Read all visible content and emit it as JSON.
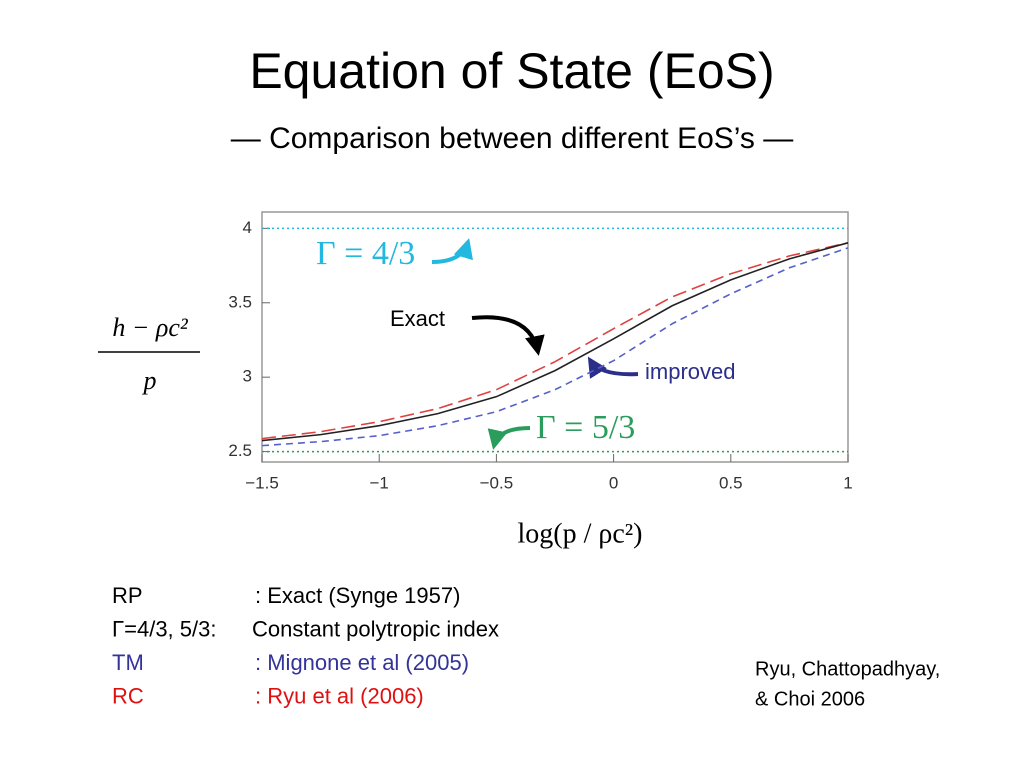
{
  "chart_data": {
    "type": "line",
    "title": "Equation of State (EoS)",
    "subtitle": "— Comparison between different EoS’s —",
    "x_label": "log(p / ρc²)",
    "y_label_numerator": "h − ρc²",
    "y_label_denominator": "p",
    "x": [
      -1.5,
      -1.25,
      -1,
      -0.75,
      -0.5,
      -0.25,
      0,
      0.25,
      0.5,
      0.75,
      1
    ],
    "series": [
      {
        "name": "Γ = 4/3",
        "color": "#22b8e0",
        "style": "dotted",
        "values": [
          4,
          4,
          4,
          4,
          4,
          4,
          4,
          4,
          4,
          4,
          4
        ]
      },
      {
        "name": "Γ = 5/3",
        "color": "#2a9d5c",
        "style": "dotted",
        "values": [
          2.5,
          2.5,
          2.5,
          2.5,
          2.5,
          2.5,
          2.5,
          2.5,
          2.5,
          2.5,
          2.5
        ]
      },
      {
        "color": "#e04040",
        "style": "longdash",
        "values": [
          2.587,
          2.634,
          2.701,
          2.789,
          2.916,
          3.104,
          3.326,
          3.54,
          3.695,
          3.815,
          3.903
        ]
      },
      {
        "name": "improved",
        "color": "#5560c8",
        "style": "dashed",
        "values": [
          2.54,
          2.567,
          2.607,
          2.674,
          2.768,
          2.916,
          3.111,
          3.359,
          3.56,
          3.735,
          3.869
        ]
      },
      {
        "name": "Exact",
        "color": "#222222",
        "style": "solid",
        "values": [
          2.574,
          2.614,
          2.674,
          2.755,
          2.869,
          3.044,
          3.258,
          3.48,
          3.654,
          3.795,
          3.903
        ]
      }
    ],
    "xlim": [
      -1.5,
      1
    ],
    "ylim": [
      2.43,
      4.11
    ],
    "xticks": [
      {
        "value": -1.5,
        "label": "−1.5"
      },
      {
        "value": -1,
        "label": "−1"
      },
      {
        "value": -0.5,
        "label": "−0.5"
      },
      0,
      0.5,
      1
    ],
    "yticks": [
      2.5,
      3,
      3.5,
      4
    ]
  },
  "notes": [
    {
      "label": "RP",
      "text": ": Exact (Synge 1957)",
      "color": "#000000"
    },
    {
      "label": "Γ=4/3, 5/3:",
      "text": "Constant polytropic index",
      "color": "#000000"
    },
    {
      "label": "TM",
      "text": ": Mignone et al (2005)",
      "color": "#333399"
    },
    {
      "label": "RC",
      "text": ": Ryu et al (2006)",
      "color": "#e01010"
    }
  ],
  "citation": [
    "Ryu, Chattopadhyay,",
    "& Choi  2006"
  ]
}
